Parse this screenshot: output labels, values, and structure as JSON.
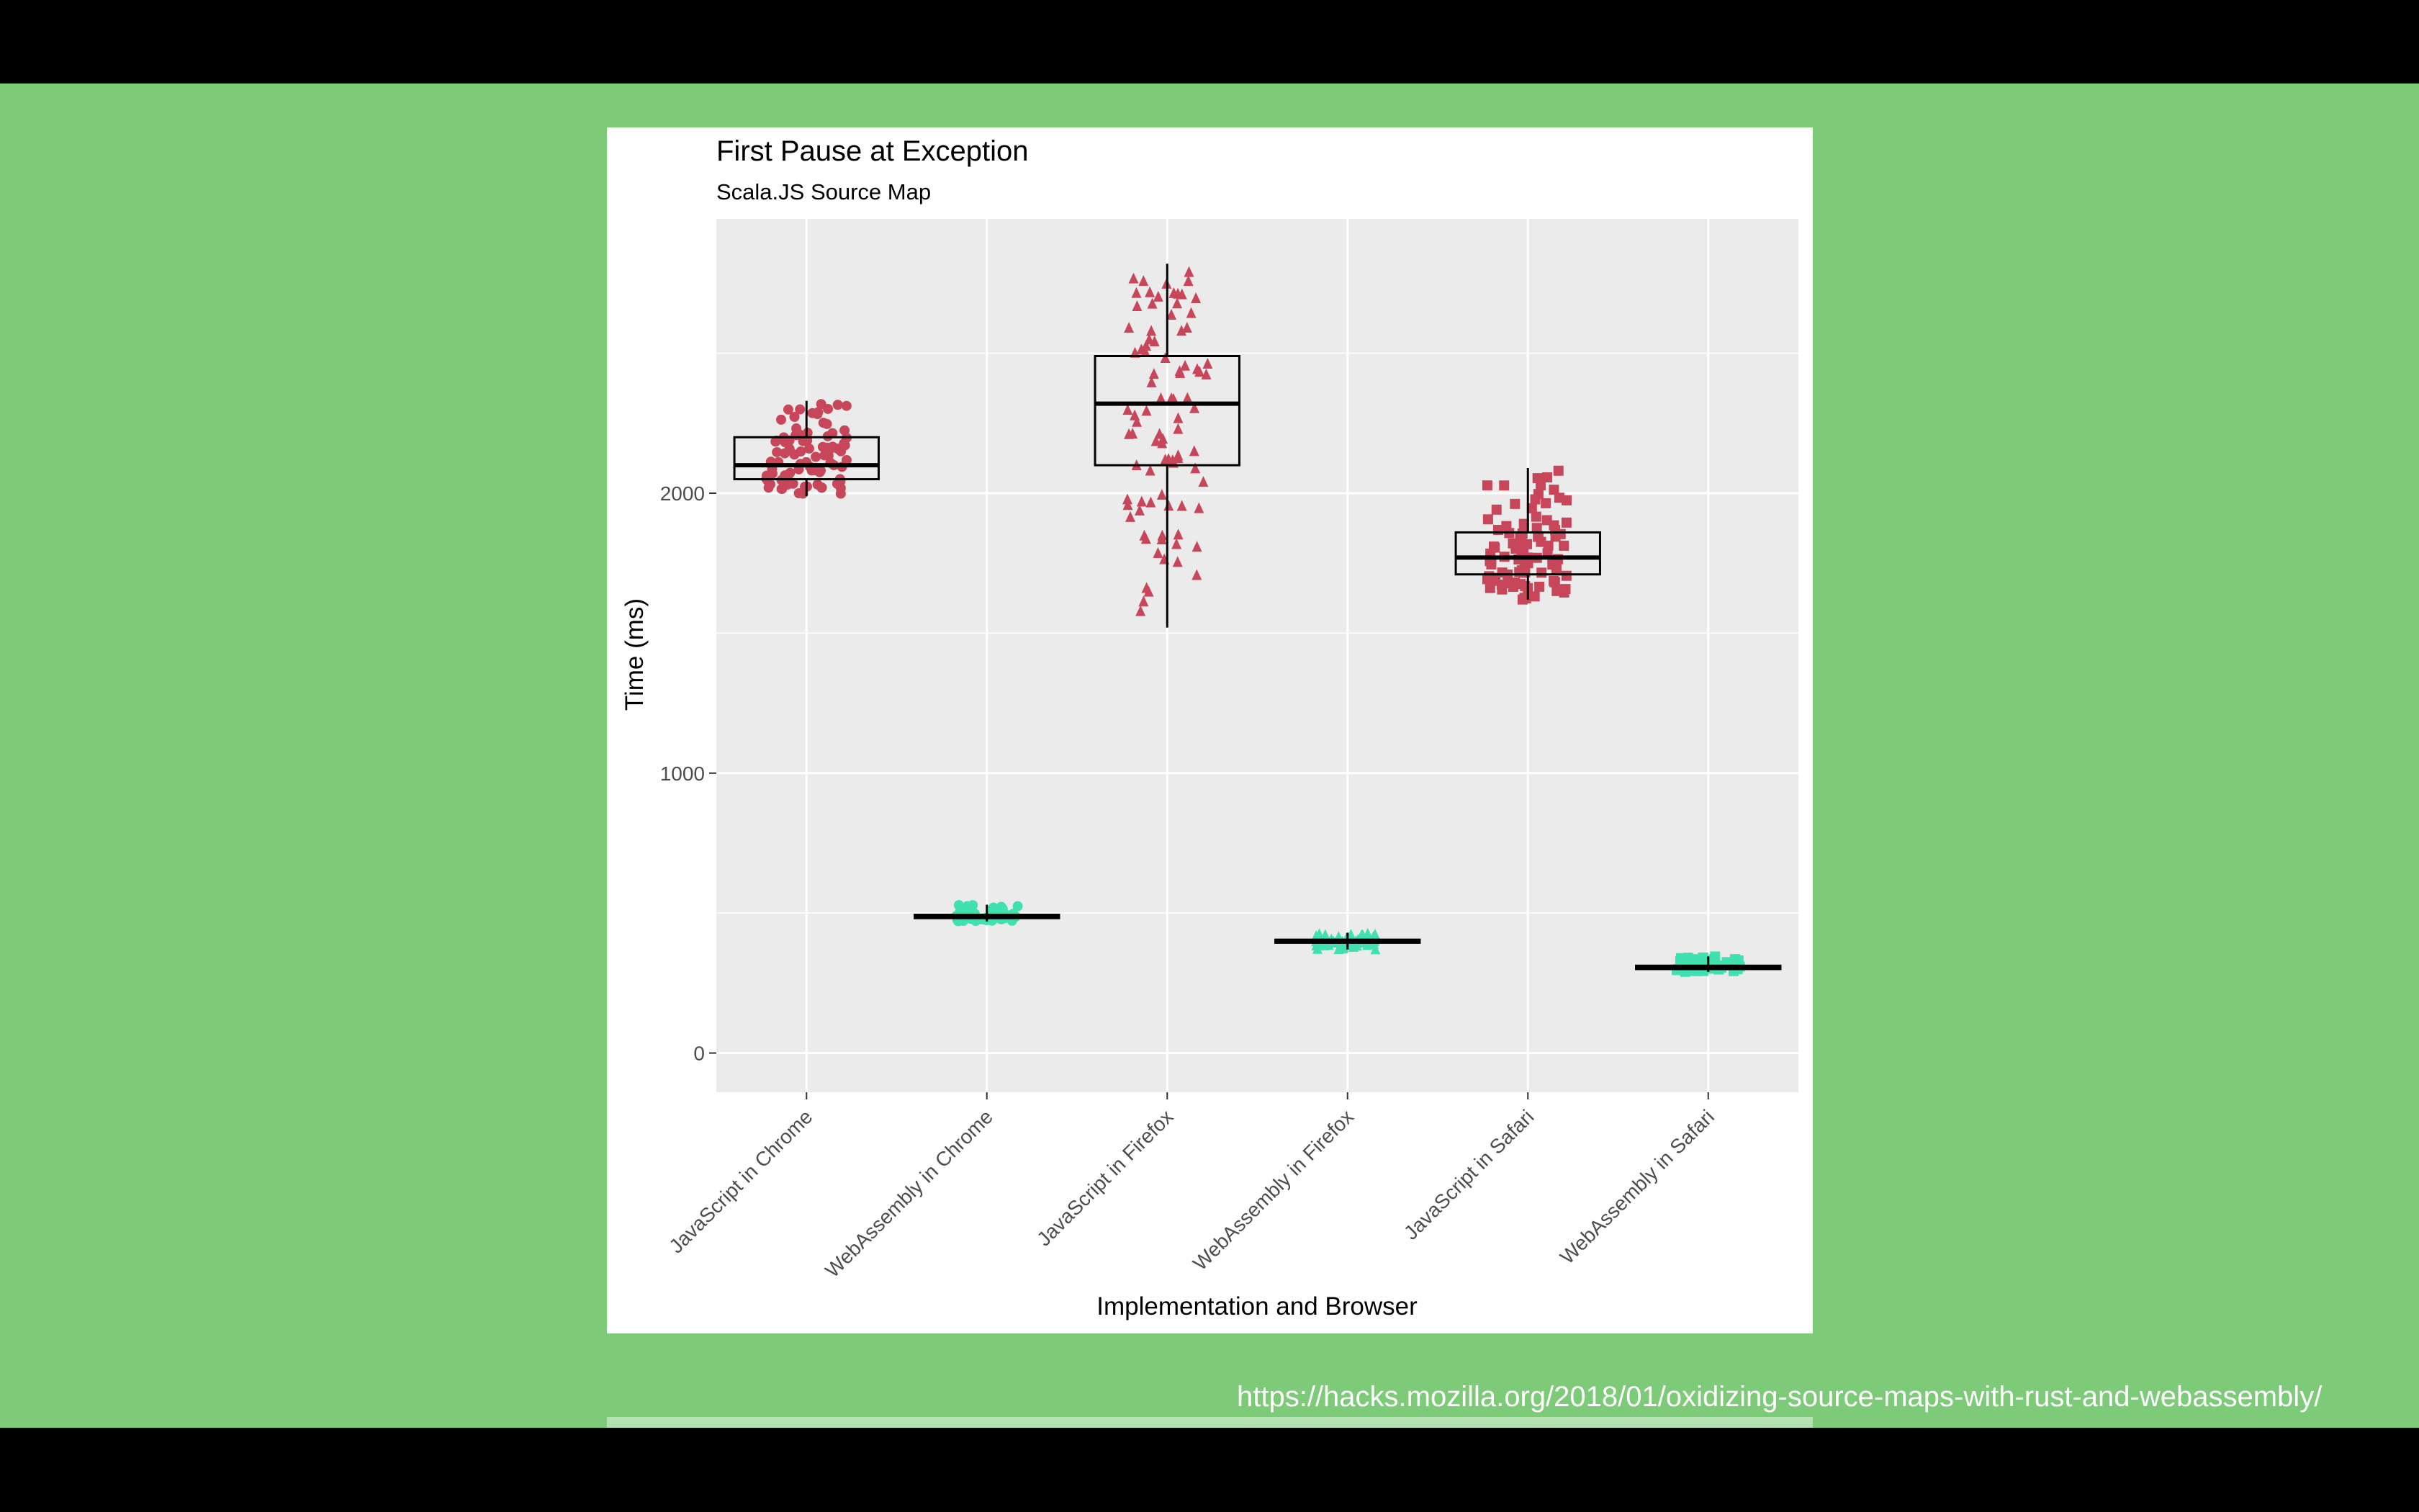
{
  "source_url": "https://hacks.mozilla.org/2018/01/oxidizing-source-maps-with-rust-and-webassembly/",
  "colors": {
    "background": "#7dcb78",
    "js_points": "#c8465a",
    "wasm_points": "#40e0b0",
    "panel_bg": "#ebebeb",
    "grid": "#ffffff"
  },
  "chart_data": {
    "type": "box",
    "title": "First Pause at Exception",
    "subtitle": "Scala.JS Source Map",
    "xlabel": "Implementation and Browser",
    "ylabel": "Time (ms)",
    "ylim": [
      -140,
      2980
    ],
    "yticks": [
      0,
      1000,
      2000
    ],
    "grid": true,
    "categories": [
      "JavaScript in Chrome",
      "WebAssembly in Chrome",
      "JavaScript in Firefox",
      "WebAssembly in Firefox",
      "JavaScript in Safari",
      "WebAssembly in Safari"
    ],
    "series": [
      {
        "category": "JavaScript in Chrome",
        "group": "js",
        "shape": "circle",
        "min": 1990,
        "q1": 2050,
        "median": 2100,
        "q3": 2200,
        "max": 2330
      },
      {
        "category": "WebAssembly in Chrome",
        "group": "wasm",
        "shape": "circle",
        "min": 470,
        "q1": 482,
        "median": 488,
        "q3": 494,
        "max": 530
      },
      {
        "category": "JavaScript in Firefox",
        "group": "js",
        "shape": "triangle",
        "min": 1520,
        "q1": 2100,
        "median": 2320,
        "q3": 2490,
        "max": 2820
      },
      {
        "category": "WebAssembly in Firefox",
        "group": "wasm",
        "shape": "triangle",
        "min": 370,
        "q1": 394,
        "median": 400,
        "q3": 405,
        "max": 430
      },
      {
        "category": "JavaScript in Safari",
        "group": "js",
        "shape": "square",
        "min": 1620,
        "q1": 1710,
        "median": 1770,
        "q3": 1860,
        "max": 2090
      },
      {
        "category": "WebAssembly in Safari",
        "group": "wasm",
        "shape": "square",
        "min": 290,
        "q1": 300,
        "median": 305,
        "q3": 312,
        "max": 345
      }
    ]
  }
}
